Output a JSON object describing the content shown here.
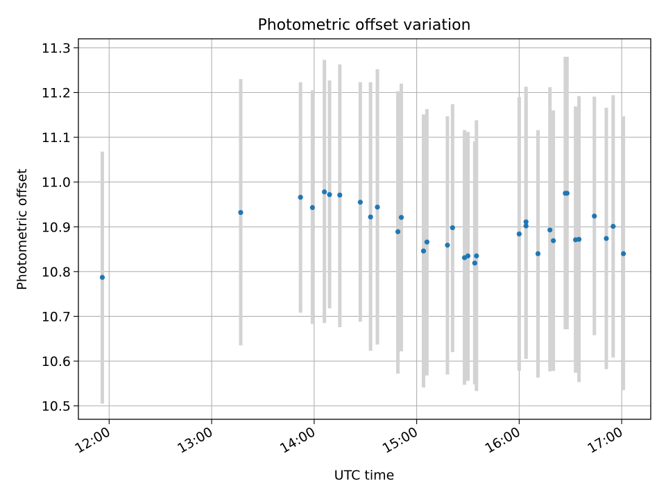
{
  "chart_data": {
    "type": "scatter",
    "title": "Photometric offset variation",
    "xlabel": "UTC time",
    "ylabel": "Photometric offset",
    "x_ticks": [
      "12:00",
      "13:00",
      "14:00",
      "15:00",
      "16:00",
      "17:00"
    ],
    "x_tick_values": [
      "12:00",
      "13:00",
      "14:00",
      "15:00",
      "16:00",
      "17:00"
    ],
    "y_ticks": [
      10.5,
      10.6,
      10.7,
      10.8,
      10.9,
      11.0,
      11.1,
      11.2,
      11.3
    ],
    "y_tick_labels": [
      "10.5",
      "10.6",
      "10.7",
      "10.8",
      "10.9",
      "11.0",
      "11.1",
      "11.2",
      "11.3"
    ],
    "xlim": [
      "11:42",
      "17:17"
    ],
    "ylim": [
      10.47,
      11.32
    ],
    "grid": true,
    "colors": {
      "point": "#1f77b4",
      "errorbar": "#d3d3d3",
      "grid": "#b0b0b0"
    },
    "points": [
      {
        "x": "11:56",
        "y": 10.787,
        "ylow": 10.505,
        "yhigh": 11.068
      },
      {
        "x": "13:17",
        "y": 10.932,
        "ylow": 10.635,
        "yhigh": 11.23
      },
      {
        "x": "13:52",
        "y": 10.966,
        "ylow": 10.708,
        "yhigh": 11.223
      },
      {
        "x": "13:59",
        "y": 10.943,
        "ylow": 10.683,
        "yhigh": 11.205
      },
      {
        "x": "14:06",
        "y": 10.978,
        "ylow": 10.685,
        "yhigh": 11.273
      },
      {
        "x": "14:09",
        "y": 10.972,
        "ylow": 10.718,
        "yhigh": 11.227
      },
      {
        "x": "14:15",
        "y": 10.971,
        "ylow": 10.676,
        "yhigh": 11.263
      },
      {
        "x": "14:27",
        "y": 10.955,
        "ylow": 10.688,
        "yhigh": 11.223
      },
      {
        "x": "14:33",
        "y": 10.922,
        "ylow": 10.623,
        "yhigh": 11.223
      },
      {
        "x": "14:37",
        "y": 10.944,
        "ylow": 10.637,
        "yhigh": 11.252
      },
      {
        "x": "14:49",
        "y": 10.889,
        "ylow": 10.572,
        "yhigh": 11.203
      },
      {
        "x": "14:51",
        "y": 10.921,
        "ylow": 10.622,
        "yhigh": 11.22
      },
      {
        "x": "15:04",
        "y": 10.846,
        "ylow": 10.541,
        "yhigh": 11.151
      },
      {
        "x": "15:06",
        "y": 10.866,
        "ylow": 10.568,
        "yhigh": 11.163
      },
      {
        "x": "15:18",
        "y": 10.859,
        "ylow": 10.57,
        "yhigh": 11.147
      },
      {
        "x": "15:21",
        "y": 10.898,
        "ylow": 10.62,
        "yhigh": 11.174
      },
      {
        "x": "15:28",
        "y": 10.831,
        "ylow": 10.547,
        "yhigh": 11.116
      },
      {
        "x": "15:30",
        "y": 10.835,
        "ylow": 10.556,
        "yhigh": 11.112
      },
      {
        "x": "15:34",
        "y": 10.819,
        "ylow": 10.548,
        "yhigh": 11.091
      },
      {
        "x": "15:35",
        "y": 10.835,
        "ylow": 10.533,
        "yhigh": 11.138
      },
      {
        "x": "16:00",
        "y": 10.884,
        "ylow": 10.578,
        "yhigh": 11.19
      },
      {
        "x": "16:04",
        "y": 10.911,
        "ylow": 10.605,
        "yhigh": 11.213
      },
      {
        "x": "16:04",
        "y": 10.902,
        "ylow": 10.605,
        "yhigh": 11.2
      },
      {
        "x": "16:11",
        "y": 10.84,
        "ylow": 10.563,
        "yhigh": 11.116
      },
      {
        "x": "16:18",
        "y": 10.893,
        "ylow": 10.577,
        "yhigh": 11.212
      },
      {
        "x": "16:20",
        "y": 10.869,
        "ylow": 10.578,
        "yhigh": 11.16
      },
      {
        "x": "16:27",
        "y": 10.975,
        "ylow": 10.671,
        "yhigh": 11.28
      },
      {
        "x": "16:28",
        "y": 10.975,
        "ylow": 10.671,
        "yhigh": 11.28
      },
      {
        "x": "16:33",
        "y": 10.871,
        "ylow": 10.574,
        "yhigh": 11.169
      },
      {
        "x": "16:35",
        "y": 10.872,
        "ylow": 10.553,
        "yhigh": 11.192
      },
      {
        "x": "16:44",
        "y": 10.924,
        "ylow": 10.658,
        "yhigh": 11.191
      },
      {
        "x": "16:51",
        "y": 10.874,
        "ylow": 10.582,
        "yhigh": 11.166
      },
      {
        "x": "16:55",
        "y": 10.901,
        "ylow": 10.608,
        "yhigh": 11.194
      },
      {
        "x": "17:01",
        "y": 10.84,
        "ylow": 10.535,
        "yhigh": 11.147
      }
    ]
  }
}
